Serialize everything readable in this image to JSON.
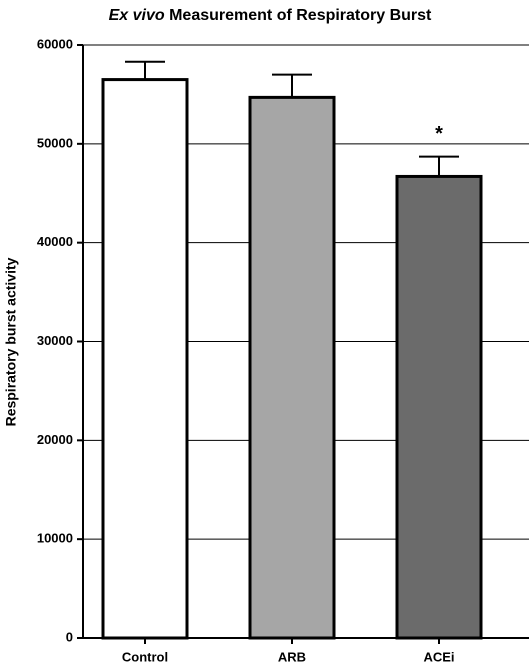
{
  "chart_data": {
    "type": "bar",
    "title": [
      "Ex vivo",
      "Measurement of Respiratory Burst"
    ],
    "y_label": "Respiratory burst activity",
    "categories": [
      "Control",
      "ARB",
      "ACEi"
    ],
    "values": [
      56500,
      54700,
      46700
    ],
    "errors": [
      1800,
      2300,
      2000
    ],
    "colors": [
      "#ffffff",
      "#a6a6a6",
      "#6b6b6b"
    ],
    "annotations": [
      {
        "text": "*",
        "category": "ACEi"
      }
    ],
    "ylim": [
      0,
      60000
    ],
    "yticks": [
      0,
      10000,
      20000,
      30000,
      40000,
      50000,
      60000
    ],
    "grid": true
  }
}
